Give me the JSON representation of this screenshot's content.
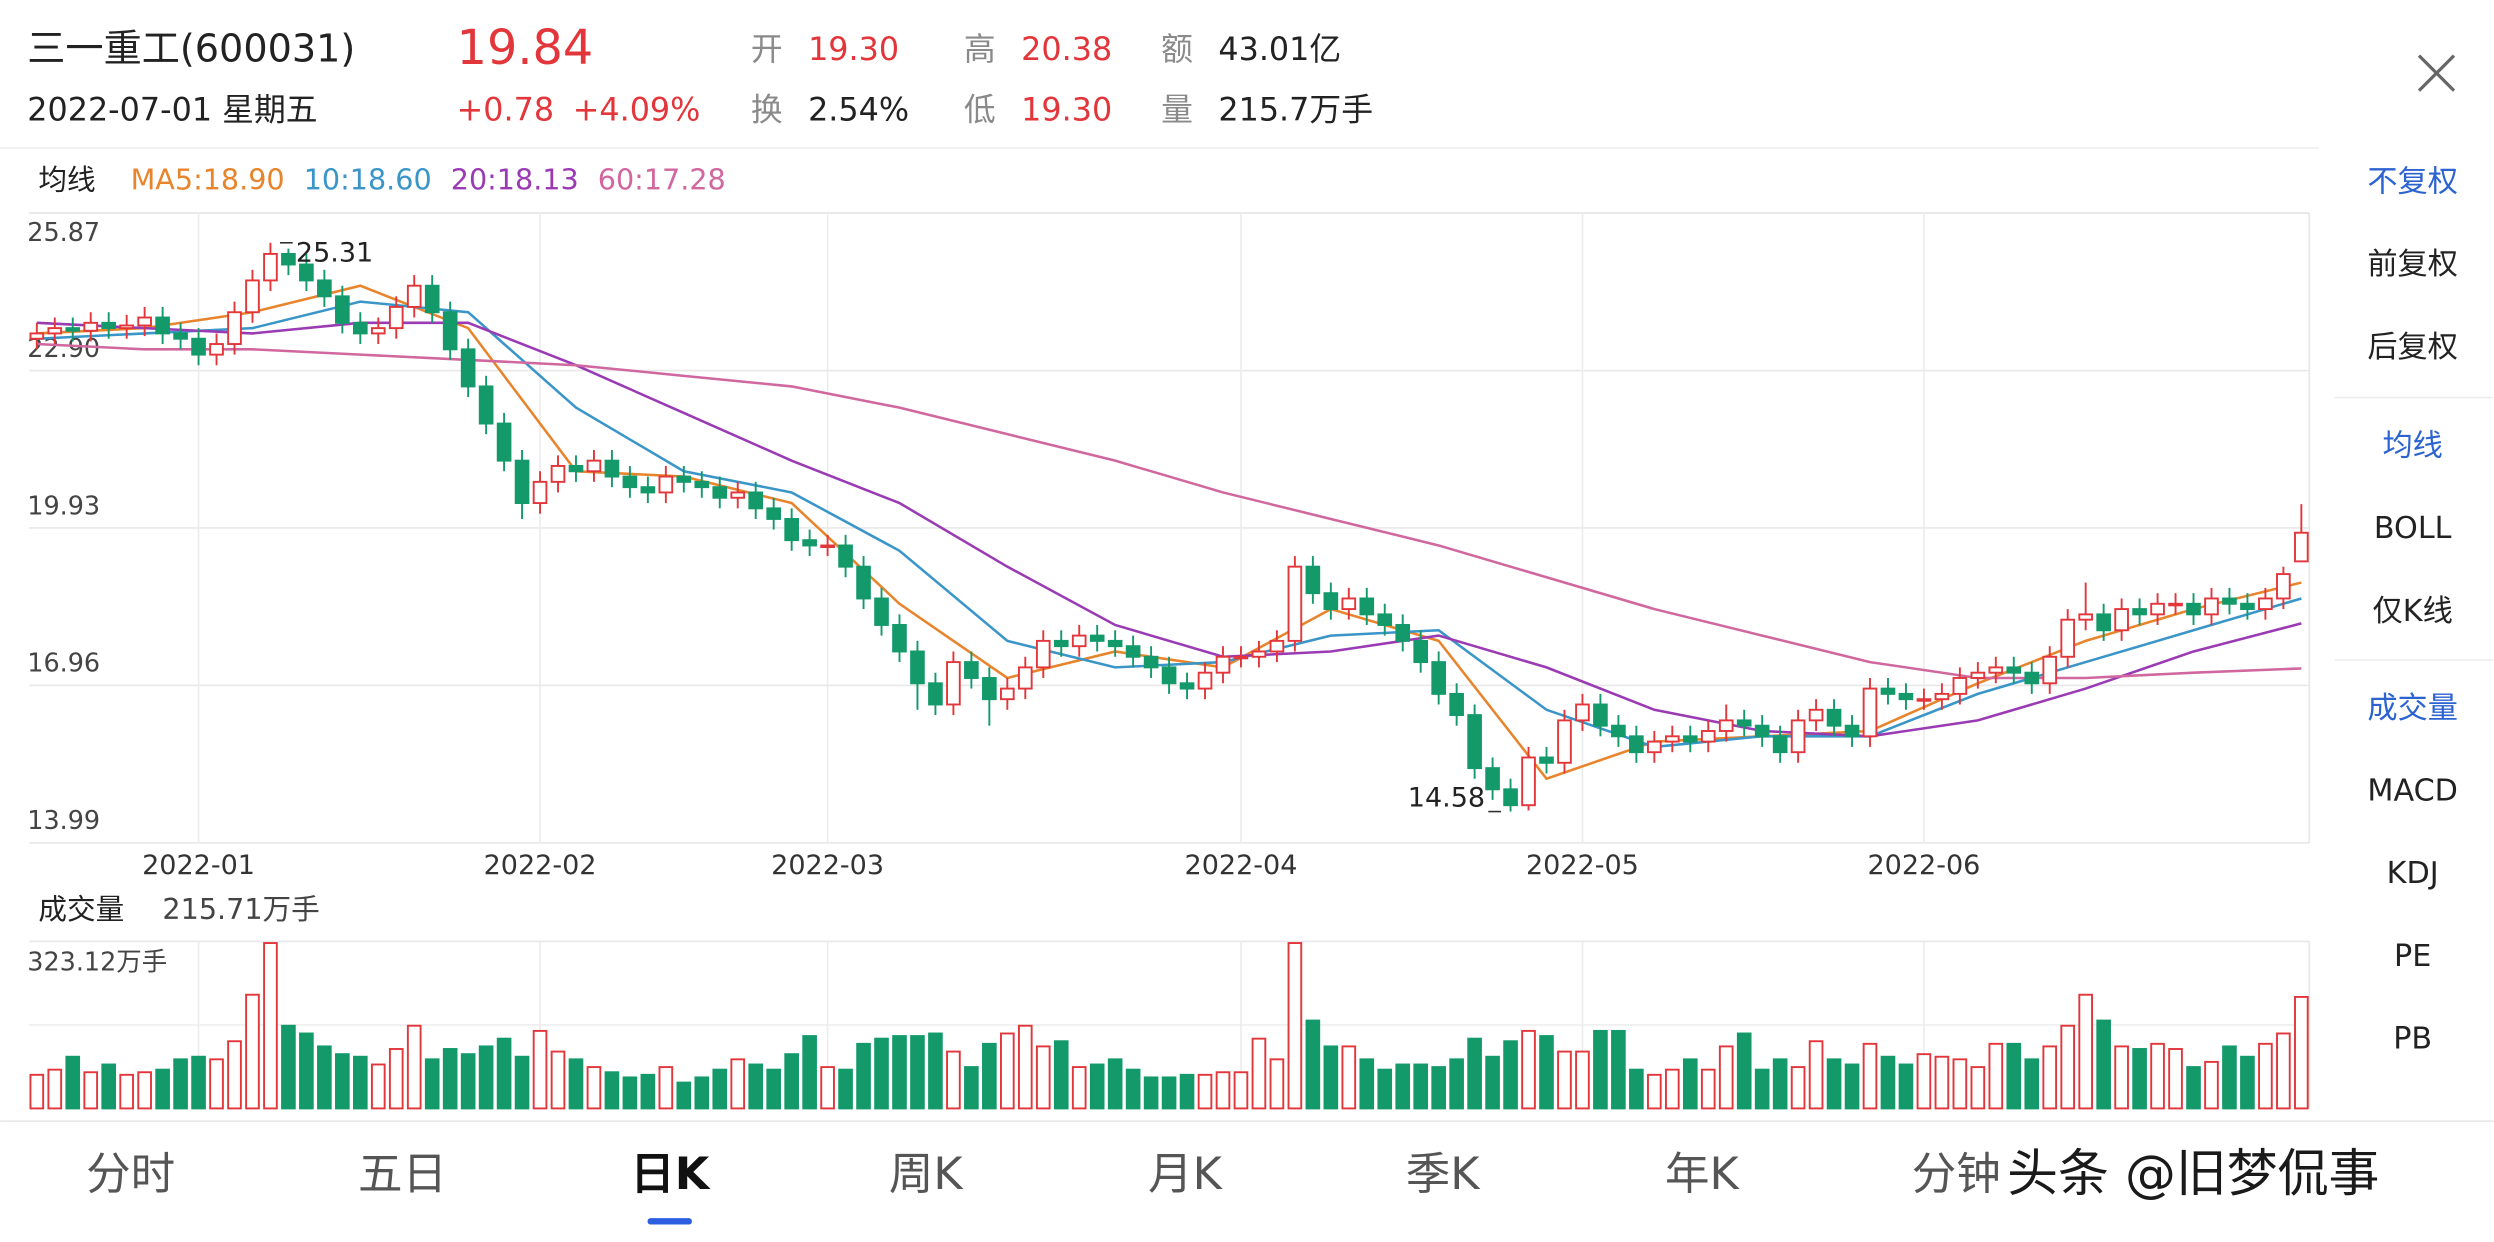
{
  "quote": {
    "name": "三一重工(600031)",
    "price": "19.84",
    "date": "2022-07-01 星期五",
    "change": "+0.78",
    "change_pct": "+4.09%",
    "up_color": "#e2363b",
    "fields": [
      {
        "label": "开",
        "value": "19.30",
        "color": "#e2363b"
      },
      {
        "label": "高",
        "value": "20.38",
        "color": "#e2363b"
      },
      {
        "label": "额",
        "value": "43.01亿",
        "color": "#222222"
      },
      {
        "label": "换",
        "value": "2.54%",
        "color": "#222222"
      },
      {
        "label": "低",
        "value": "19.30",
        "color": "#e2363b"
      },
      {
        "label": "量",
        "value": "215.7万手",
        "color": "#222222"
      }
    ]
  },
  "chart_data": [
    {
      "type": "candlestick",
      "legend_title": "均线",
      "up_color": "#e2363b",
      "down_color": "#13996a",
      "ylim": [
        13.99,
        25.87
      ],
      "yticks": [
        25.87,
        {
          "value": 22.9,
          "label": "22.90"
        },
        19.93,
        16.96,
        13.99
      ],
      "xlim": [
        0,
        126
      ],
      "xticks": [
        {
          "value": 9,
          "label": "2022-01"
        },
        {
          "value": 28,
          "label": "2022-02"
        },
        {
          "value": 44,
          "label": "2022-03"
        },
        {
          "value": 67,
          "label": "2022-04"
        },
        {
          "value": 86,
          "label": "2022-05"
        },
        {
          "value": 105,
          "label": "2022-06"
        }
      ],
      "grid": true,
      "high_label": 25.31,
      "high_index": 13,
      "low_label": 14.58,
      "low_index": 82,
      "candles": [
        [
          23.5,
          23.8,
          23.3,
          23.6
        ],
        [
          23.6,
          23.9,
          23.4,
          23.7
        ],
        [
          23.7,
          23.9,
          23.45,
          23.65
        ],
        [
          23.65,
          24.0,
          23.45,
          23.8
        ],
        [
          23.8,
          24.0,
          23.5,
          23.7
        ],
        [
          23.7,
          23.95,
          23.5,
          23.75
        ],
        [
          23.75,
          24.1,
          23.55,
          23.9
        ],
        [
          23.9,
          24.1,
          23.4,
          23.6
        ],
        [
          23.6,
          23.8,
          23.3,
          23.5
        ],
        [
          23.5,
          23.7,
          23.0,
          23.2
        ],
        [
          23.2,
          23.6,
          23.0,
          23.4
        ],
        [
          23.4,
          24.2,
          23.2,
          24.0
        ],
        [
          24.0,
          24.8,
          23.8,
          24.6
        ],
        [
          24.6,
          25.31,
          24.4,
          25.1
        ],
        [
          25.1,
          25.2,
          24.7,
          24.9
        ],
        [
          24.9,
          25.1,
          24.4,
          24.6
        ],
        [
          24.6,
          24.8,
          24.1,
          24.3
        ],
        [
          24.3,
          24.5,
          23.6,
          23.8
        ],
        [
          23.8,
          24.0,
          23.4,
          23.6
        ],
        [
          23.6,
          23.9,
          23.4,
          23.7
        ],
        [
          23.7,
          24.3,
          23.5,
          24.1
        ],
        [
          24.1,
          24.7,
          23.9,
          24.5
        ],
        [
          24.5,
          24.7,
          23.8,
          24.0
        ],
        [
          24.0,
          24.2,
          23.1,
          23.3
        ],
        [
          23.3,
          23.5,
          22.4,
          22.6
        ],
        [
          22.6,
          22.8,
          21.7,
          21.9
        ],
        [
          21.9,
          22.1,
          21.0,
          21.2
        ],
        [
          21.2,
          21.4,
          20.1,
          20.4
        ],
        [
          20.4,
          21.0,
          20.2,
          20.8
        ],
        [
          20.8,
          21.3,
          20.6,
          21.1
        ],
        [
          21.1,
          21.3,
          20.8,
          21.0
        ],
        [
          21.0,
          21.4,
          20.8,
          21.2
        ],
        [
          21.2,
          21.4,
          20.7,
          20.9
        ],
        [
          20.9,
          21.1,
          20.5,
          20.7
        ],
        [
          20.7,
          20.9,
          20.4,
          20.6
        ],
        [
          20.6,
          21.1,
          20.4,
          20.9
        ],
        [
          20.9,
          21.1,
          20.6,
          20.8
        ],
        [
          20.8,
          21.0,
          20.5,
          20.7
        ],
        [
          20.7,
          20.9,
          20.3,
          20.5
        ],
        [
          20.5,
          20.8,
          20.3,
          20.6
        ],
        [
          20.6,
          20.8,
          20.1,
          20.3
        ],
        [
          20.3,
          20.5,
          19.9,
          20.1
        ],
        [
          20.1,
          20.3,
          19.5,
          19.7
        ],
        [
          19.7,
          19.9,
          19.4,
          19.6
        ],
        [
          19.6,
          19.8,
          19.4,
          19.6
        ],
        [
          19.6,
          19.8,
          19.0,
          19.2
        ],
        [
          19.2,
          19.4,
          18.4,
          18.6
        ],
        [
          18.6,
          18.8,
          17.9,
          18.1
        ],
        [
          18.1,
          18.3,
          17.4,
          17.6
        ],
        [
          17.6,
          17.8,
          16.5,
          17.0
        ],
        [
          17.0,
          17.2,
          16.4,
          16.6
        ],
        [
          16.6,
          17.6,
          16.4,
          17.4
        ],
        [
          17.4,
          17.6,
          16.9,
          17.1
        ],
        [
          17.1,
          17.3,
          16.2,
          16.7
        ],
        [
          16.7,
          17.1,
          16.5,
          16.9
        ],
        [
          16.9,
          17.5,
          16.7,
          17.3
        ],
        [
          17.3,
          18.0,
          17.1,
          17.8
        ],
        [
          17.8,
          18.0,
          17.5,
          17.7
        ],
        [
          17.7,
          18.1,
          17.5,
          17.9
        ],
        [
          17.9,
          18.1,
          17.6,
          17.8
        ],
        [
          17.8,
          18.0,
          17.5,
          17.7
        ],
        [
          17.7,
          17.9,
          17.3,
          17.5
        ],
        [
          17.5,
          17.7,
          17.1,
          17.3
        ],
        [
          17.3,
          17.5,
          16.8,
          17.0
        ],
        [
          17.0,
          17.2,
          16.7,
          16.9
        ],
        [
          16.9,
          17.4,
          16.7,
          17.2
        ],
        [
          17.2,
          17.7,
          17.0,
          17.5
        ],
        [
          17.5,
          17.7,
          17.3,
          17.5
        ],
        [
          17.5,
          17.8,
          17.3,
          17.6
        ],
        [
          17.6,
          18.0,
          17.4,
          17.8
        ],
        [
          17.8,
          19.4,
          17.6,
          19.2
        ],
        [
          19.2,
          19.4,
          18.5,
          18.7
        ],
        [
          18.7,
          18.9,
          18.2,
          18.4
        ],
        [
          18.4,
          18.8,
          18.2,
          18.6
        ],
        [
          18.6,
          18.8,
          18.1,
          18.3
        ],
        [
          18.3,
          18.5,
          17.9,
          18.1
        ],
        [
          18.1,
          18.3,
          17.6,
          17.8
        ],
        [
          17.8,
          18.0,
          17.2,
          17.4
        ],
        [
          17.4,
          17.6,
          16.6,
          16.8
        ],
        [
          16.8,
          17.0,
          16.2,
          16.4
        ],
        [
          16.4,
          16.6,
          15.2,
          15.4
        ],
        [
          15.4,
          15.6,
          14.8,
          15.0
        ],
        [
          15.0,
          15.2,
          14.58,
          14.7
        ],
        [
          14.7,
          15.8,
          14.6,
          15.6
        ],
        [
          15.6,
          15.8,
          15.3,
          15.5
        ],
        [
          15.5,
          16.5,
          15.3,
          16.3
        ],
        [
          16.3,
          16.8,
          16.1,
          16.6
        ],
        [
          16.6,
          16.8,
          16.0,
          16.2
        ],
        [
          16.2,
          16.4,
          15.8,
          16.0
        ],
        [
          16.0,
          16.2,
          15.5,
          15.7
        ],
        [
          15.7,
          16.1,
          15.5,
          15.9
        ],
        [
          15.9,
          16.2,
          15.7,
          16.0
        ],
        [
          16.0,
          16.2,
          15.7,
          15.9
        ],
        [
          15.9,
          16.3,
          15.7,
          16.1
        ],
        [
          16.1,
          16.6,
          15.9,
          16.3
        ],
        [
          16.3,
          16.5,
          16.0,
          16.2
        ],
        [
          16.2,
          16.4,
          15.8,
          16.0
        ],
        [
          16.0,
          16.2,
          15.5,
          15.7
        ],
        [
          15.7,
          16.5,
          15.5,
          16.3
        ],
        [
          16.3,
          16.7,
          16.1,
          16.5
        ],
        [
          16.5,
          16.7,
          16.0,
          16.2
        ],
        [
          16.2,
          16.4,
          15.8,
          16.0
        ],
        [
          16.0,
          17.1,
          15.8,
          16.9
        ],
        [
          16.9,
          17.1,
          16.6,
          16.8
        ],
        [
          16.8,
          17.0,
          16.5,
          16.7
        ],
        [
          16.7,
          16.9,
          16.5,
          16.7
        ],
        [
          16.7,
          17.0,
          16.5,
          16.8
        ],
        [
          16.8,
          17.3,
          16.6,
          17.1
        ],
        [
          17.1,
          17.4,
          16.9,
          17.2
        ],
        [
          17.2,
          17.5,
          17.0,
          17.3
        ],
        [
          17.3,
          17.5,
          17.0,
          17.2
        ],
        [
          17.2,
          17.4,
          16.8,
          17.0
        ],
        [
          17.0,
          17.7,
          16.8,
          17.5
        ],
        [
          17.5,
          18.4,
          17.3,
          18.2
        ],
        [
          18.2,
          18.9,
          18.0,
          18.3
        ],
        [
          18.3,
          18.5,
          17.8,
          18.0
        ],
        [
          18.0,
          18.6,
          17.8,
          18.4
        ],
        [
          18.4,
          18.6,
          18.1,
          18.3
        ],
        [
          18.3,
          18.7,
          18.1,
          18.5
        ],
        [
          18.5,
          18.7,
          18.3,
          18.5
        ],
        [
          18.5,
          18.7,
          18.1,
          18.3
        ],
        [
          18.3,
          18.8,
          18.1,
          18.6
        ],
        [
          18.6,
          18.8,
          18.3,
          18.5
        ],
        [
          18.5,
          18.7,
          18.2,
          18.4
        ],
        [
          18.4,
          18.8,
          18.2,
          18.6
        ],
        [
          18.6,
          19.2,
          18.4,
          19.06
        ],
        [
          19.3,
          20.38,
          19.3,
          19.84
        ]
      ],
      "series": [
        {
          "name": "MA5:18.90",
          "color": "#e8842c",
          "x": [
            0,
            6,
            12,
            18,
            24,
            30,
            36,
            42,
            48,
            54,
            60,
            66,
            72,
            78,
            84,
            90,
            96,
            102,
            108,
            114,
            120,
            126
          ],
          "values": [
            23.6,
            23.7,
            24.0,
            24.5,
            23.7,
            21.0,
            20.9,
            20.4,
            18.5,
            17.1,
            17.6,
            17.3,
            18.4,
            17.8,
            15.2,
            15.9,
            16.0,
            16.1,
            17.0,
            17.8,
            18.4,
            18.9
          ]
        },
        {
          "name": "10:18.60",
          "color": "#3a95c8",
          "x": [
            0,
            6,
            12,
            18,
            24,
            30,
            36,
            42,
            48,
            54,
            60,
            66,
            72,
            78,
            84,
            90,
            96,
            102,
            108,
            114,
            120,
            126
          ],
          "values": [
            23.5,
            23.6,
            23.7,
            24.2,
            24.0,
            22.2,
            21.0,
            20.6,
            19.5,
            17.8,
            17.3,
            17.4,
            17.9,
            18.0,
            16.5,
            15.8,
            16.0,
            16.0,
            16.8,
            17.4,
            18.0,
            18.6
          ]
        },
        {
          "name": "20:18.13",
          "color": "#9a3bb4",
          "x": [
            0,
            6,
            12,
            18,
            24,
            30,
            36,
            42,
            48,
            54,
            60,
            66,
            72,
            78,
            84,
            90,
            96,
            102,
            108,
            114,
            120,
            126
          ],
          "values": [
            23.8,
            23.7,
            23.6,
            23.8,
            23.8,
            23.0,
            22.1,
            21.2,
            20.4,
            19.2,
            18.1,
            17.5,
            17.6,
            17.9,
            17.3,
            16.5,
            16.1,
            16.0,
            16.3,
            16.9,
            17.6,
            18.13
          ]
        },
        {
          "name": "60:17.28",
          "color": "#d0679f",
          "x": [
            0,
            6,
            12,
            18,
            24,
            30,
            36,
            42,
            48,
            54,
            60,
            66,
            72,
            78,
            84,
            90,
            96,
            102,
            108,
            114,
            120,
            126
          ],
          "values": [
            23.4,
            23.3,
            23.3,
            23.2,
            23.1,
            23.0,
            22.8,
            22.6,
            22.2,
            21.7,
            21.2,
            20.6,
            20.1,
            19.6,
            19.0,
            18.4,
            17.9,
            17.4,
            17.1,
            17.1,
            17.2,
            17.28
          ]
        }
      ]
    },
    {
      "type": "bar",
      "title": "成交量",
      "subtitle": "215.71万手",
      "ylim": [
        0,
        323.12
      ],
      "yticks": [
        {
          "value": 323.12,
          "label": "323.12万手"
        }
      ],
      "values": [
        65,
        75,
        100,
        70,
        85,
        65,
        70,
        75,
        95,
        100,
        95,
        130,
        220,
        320,
        160,
        145,
        120,
        105,
        100,
        85,
        115,
        160,
        95,
        115,
        105,
        120,
        135,
        100,
        150,
        110,
        95,
        80,
        70,
        60,
        65,
        80,
        50,
        60,
        75,
        95,
        85,
        75,
        105,
        140,
        80,
        75,
        125,
        135,
        140,
        140,
        145,
        110,
        80,
        125,
        145,
        160,
        120,
        130,
        80,
        85,
        95,
        75,
        60,
        60,
        65,
        65,
        70,
        70,
        135,
        95,
        320,
        170,
        120,
        120,
        95,
        75,
        85,
        85,
        80,
        95,
        135,
        100,
        130,
        150,
        140,
        110,
        110,
        150,
        150,
        75,
        65,
        75,
        95,
        75,
        120,
        145,
        75,
        95,
        80,
        130,
        95,
        85,
        125,
        100,
        85,
        105,
        100,
        95,
        80,
        125,
        125,
        95,
        120,
        160,
        220,
        170,
        120,
        115,
        125,
        115,
        80,
        90,
        120,
        100,
        125,
        145,
        215.71
      ]
    }
  ],
  "side_menu": [
    {
      "label": "不复权",
      "active": true
    },
    {
      "label": "前复权",
      "active": false
    },
    {
      "label": "后复权",
      "active": false
    },
    {
      "label": "均线",
      "active": true
    },
    {
      "label": "BOLL",
      "active": false
    },
    {
      "label": "仅K线",
      "active": false
    },
    {
      "label": "成交量",
      "active": true
    },
    {
      "label": "MACD",
      "active": false
    },
    {
      "label": "KDJ",
      "active": false
    },
    {
      "label": "PE",
      "active": false
    },
    {
      "label": "PB",
      "active": false
    }
  ],
  "tabs": [
    {
      "label": "分时",
      "active": false
    },
    {
      "label": "五日",
      "active": false
    },
    {
      "label": "日K",
      "active": true
    },
    {
      "label": "周K",
      "active": false
    },
    {
      "label": "月K",
      "active": false
    },
    {
      "label": "季K",
      "active": false
    },
    {
      "label": "年K",
      "active": false
    },
    {
      "label": "分钟",
      "active": false
    }
  ],
  "watermark": "头条 @旧梦侃事"
}
